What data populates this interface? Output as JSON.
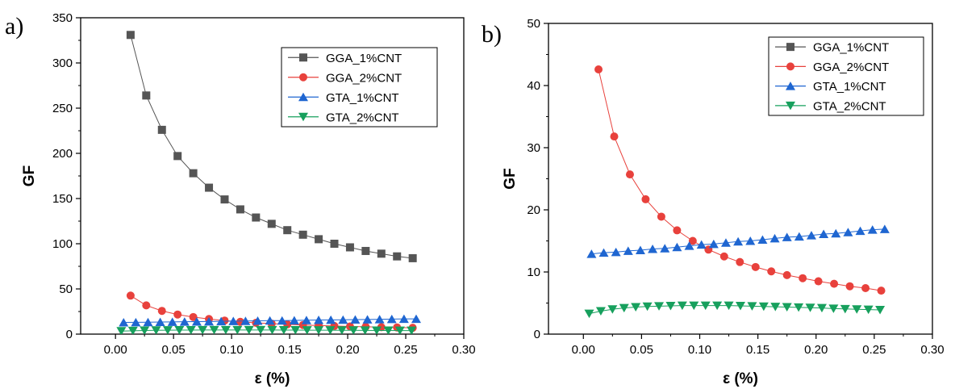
{
  "chart_data": [
    {
      "type": "line",
      "panel_label": "a)",
      "xlabel": "ε (%)",
      "ylabel": "GF",
      "xlim": [
        -0.03,
        0.3
      ],
      "ylim": [
        0,
        350
      ],
      "xticks": [
        0.0,
        0.05,
        0.1,
        0.15,
        0.2,
        0.25,
        0.3
      ],
      "yticks": [
        0,
        50,
        100,
        150,
        200,
        250,
        300,
        350
      ],
      "xtick_labels": [
        "0.00",
        "0.05",
        "0.10",
        "0.15",
        "0.20",
        "0.25",
        "0.30"
      ],
      "ytick_labels": [
        "0",
        "50",
        "100",
        "150",
        "200",
        "250",
        "300",
        "350"
      ],
      "grid": false,
      "legend": "top-right",
      "series": [
        {
          "name": "GGA_1%CNT",
          "color": "#555555",
          "marker": "square",
          "x": [
            0.013,
            0.0265,
            0.04,
            0.0535,
            0.067,
            0.0805,
            0.094,
            0.1075,
            0.121,
            0.1345,
            0.148,
            0.1615,
            0.175,
            0.1885,
            0.202,
            0.2155,
            0.229,
            0.2425,
            0.256
          ],
          "y": [
            331,
            264,
            226,
            197,
            178,
            162,
            149,
            138,
            129,
            122,
            115,
            110,
            105,
            100,
            96,
            92,
            89,
            86,
            84
          ]
        },
        {
          "name": "GGA_2%CNT",
          "color": "#e8413c",
          "marker": "circle",
          "x": [
            0.013,
            0.0265,
            0.04,
            0.0535,
            0.067,
            0.0805,
            0.094,
            0.1075,
            0.121,
            0.1345,
            0.148,
            0.1615,
            0.175,
            0.1885,
            0.202,
            0.2155,
            0.229,
            0.2425,
            0.256
          ],
          "y": [
            42.6,
            31.8,
            25.7,
            21.7,
            18.9,
            16.7,
            15.0,
            13.6,
            12.5,
            11.6,
            10.8,
            10.1,
            9.5,
            9.0,
            8.5,
            8.1,
            7.7,
            7.4,
            7.0
          ]
        },
        {
          "name": "GTA_1%CNT",
          "color": "#1f66d1",
          "marker": "triangle-up",
          "x": [
            0.007,
            0.0175,
            0.028,
            0.0385,
            0.049,
            0.0595,
            0.07,
            0.0805,
            0.091,
            0.1015,
            0.112,
            0.1225,
            0.133,
            0.1435,
            0.154,
            0.1645,
            0.175,
            0.1855,
            0.196,
            0.2065,
            0.217,
            0.2275,
            0.238,
            0.2485,
            0.259
          ],
          "y": [
            12.9,
            13.1,
            13.2,
            13.4,
            13.5,
            13.7,
            13.8,
            14.0,
            14.2,
            14.4,
            14.5,
            14.7,
            14.9,
            15.0,
            15.2,
            15.4,
            15.6,
            15.7,
            15.9,
            16.1,
            16.2,
            16.4,
            16.6,
            16.8,
            16.9
          ]
        },
        {
          "name": "GTA_2%CNT",
          "color": "#17a05d",
          "marker": "triangle-down",
          "x": [
            0.005,
            0.015,
            0.025,
            0.035,
            0.045,
            0.055,
            0.065,
            0.075,
            0.085,
            0.095,
            0.105,
            0.115,
            0.125,
            0.135,
            0.145,
            0.155,
            0.165,
            0.175,
            0.185,
            0.195,
            0.205,
            0.215,
            0.225,
            0.235,
            0.245,
            0.255
          ],
          "y": [
            3.3,
            3.7,
            4.0,
            4.2,
            4.35,
            4.45,
            4.5,
            4.55,
            4.6,
            4.6,
            4.6,
            4.6,
            4.6,
            4.55,
            4.5,
            4.45,
            4.4,
            4.35,
            4.3,
            4.25,
            4.2,
            4.1,
            4.05,
            4.0,
            3.95,
            3.9
          ]
        }
      ]
    },
    {
      "type": "line",
      "panel_label": "b)",
      "xlabel": "ε (%)",
      "ylabel": "GF",
      "xlim": [
        -0.03,
        0.3
      ],
      "ylim": [
        0,
        50
      ],
      "xticks": [
        0.0,
        0.05,
        0.1,
        0.15,
        0.2,
        0.25,
        0.3
      ],
      "yticks": [
        0,
        10,
        20,
        30,
        40,
        50
      ],
      "xtick_labels": [
        "0.00",
        "0.05",
        "0.10",
        "0.15",
        "0.20",
        "0.25",
        "0.30"
      ],
      "ytick_labels": [
        "0",
        "10",
        "20",
        "30",
        "40",
        "50"
      ],
      "grid": false,
      "legend": "top-right",
      "series": [
        {
          "name": "GGA_1%CNT",
          "color": "#555555",
          "marker": "square",
          "x": [],
          "y": []
        },
        {
          "name": "GGA_2%CNT",
          "color": "#e8413c",
          "marker": "circle",
          "x": [
            0.013,
            0.0265,
            0.04,
            0.0535,
            0.067,
            0.0805,
            0.094,
            0.1075,
            0.121,
            0.1345,
            0.148,
            0.1615,
            0.175,
            0.1885,
            0.202,
            0.2155,
            0.229,
            0.2425,
            0.256
          ],
          "y": [
            42.6,
            31.8,
            25.7,
            21.7,
            18.9,
            16.7,
            15.0,
            13.6,
            12.5,
            11.6,
            10.8,
            10.1,
            9.5,
            9.0,
            8.5,
            8.1,
            7.7,
            7.4,
            7.0
          ]
        },
        {
          "name": "GTA_1%CNT",
          "color": "#1f66d1",
          "marker": "triangle-up",
          "x": [
            0.007,
            0.0175,
            0.028,
            0.0385,
            0.049,
            0.0595,
            0.07,
            0.0805,
            0.091,
            0.1015,
            0.112,
            0.1225,
            0.133,
            0.1435,
            0.154,
            0.1645,
            0.175,
            0.1855,
            0.196,
            0.2065,
            0.217,
            0.2275,
            0.238,
            0.2485,
            0.259
          ],
          "y": [
            12.9,
            13.1,
            13.2,
            13.4,
            13.5,
            13.7,
            13.8,
            14.0,
            14.2,
            14.4,
            14.5,
            14.7,
            14.9,
            15.0,
            15.2,
            15.4,
            15.6,
            15.7,
            15.9,
            16.1,
            16.2,
            16.4,
            16.6,
            16.8,
            16.9
          ]
        },
        {
          "name": "GTA_2%CNT",
          "color": "#17a05d",
          "marker": "triangle-down",
          "x": [
            0.005,
            0.015,
            0.025,
            0.035,
            0.045,
            0.055,
            0.065,
            0.075,
            0.085,
            0.095,
            0.105,
            0.115,
            0.125,
            0.135,
            0.145,
            0.155,
            0.165,
            0.175,
            0.185,
            0.195,
            0.205,
            0.215,
            0.225,
            0.235,
            0.245,
            0.255
          ],
          "y": [
            3.3,
            3.7,
            4.0,
            4.2,
            4.35,
            4.45,
            4.5,
            4.55,
            4.6,
            4.6,
            4.6,
            4.6,
            4.6,
            4.55,
            4.5,
            4.45,
            4.4,
            4.35,
            4.3,
            4.25,
            4.2,
            4.1,
            4.05,
            4.0,
            3.95,
            3.9
          ]
        }
      ]
    }
  ]
}
